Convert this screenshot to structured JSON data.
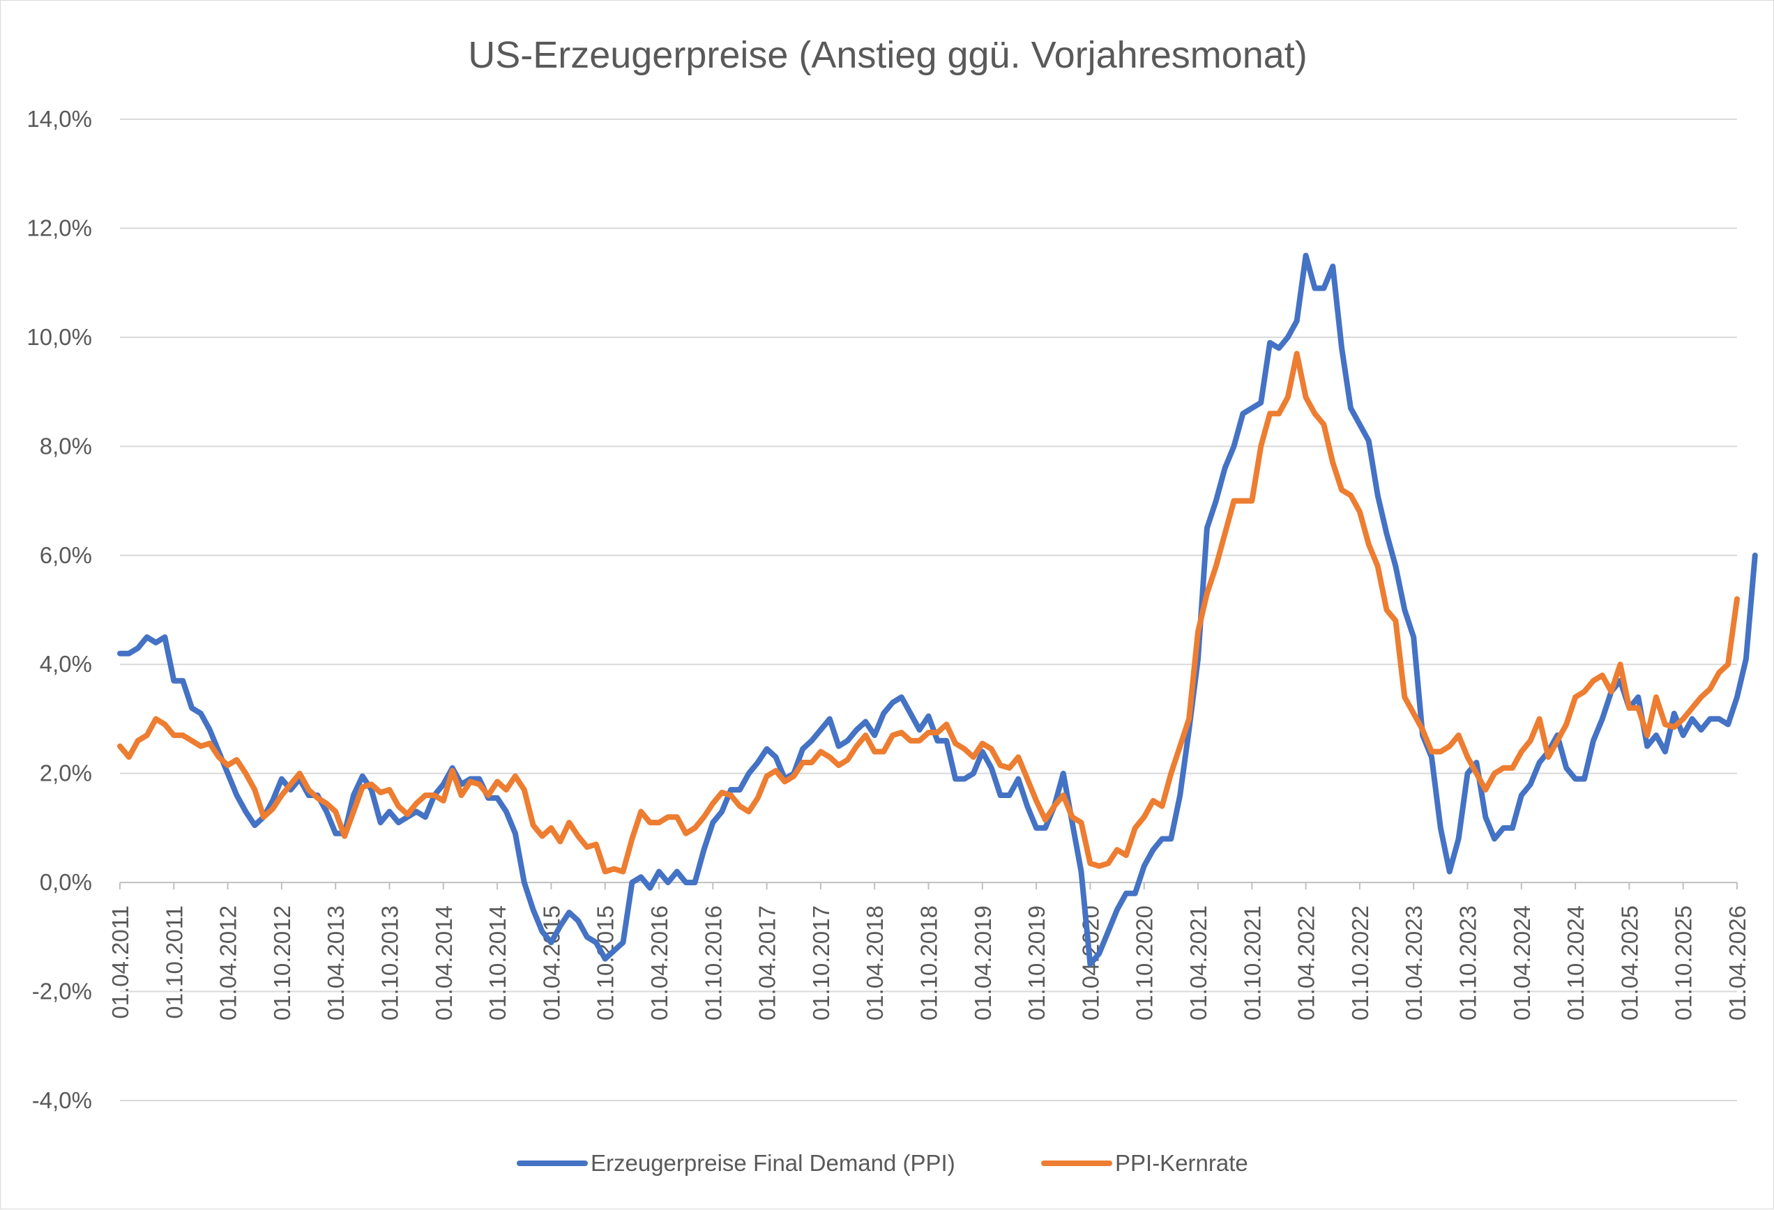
{
  "chart_data": {
    "type": "line",
    "title": "US-Erzeugerpreise (Anstieg ggü. Vorjahresmonat)",
    "xlabel": "",
    "ylabel": "",
    "ylim": [
      -4.0,
      14.0
    ],
    "y_ticks": [
      -4.0,
      -2.0,
      0.0,
      2.0,
      4.0,
      6.0,
      8.0,
      10.0,
      12.0,
      14.0
    ],
    "y_tick_labels": [
      "-4,0%",
      "-2,0%",
      "0,0%",
      "2,0%",
      "4,0%",
      "6,0%",
      "8,0%",
      "10,0%",
      "12,0%",
      "14,0%"
    ],
    "x_start": "2011-04",
    "x_end": "2026-04",
    "x_tick_labels": [
      "01.04.2011",
      "01.10.2011",
      "01.04.2012",
      "01.10.2012",
      "01.04.2013",
      "01.10.2013",
      "01.04.2014",
      "01.10.2014",
      "01.04.2015",
      "01.10.2015",
      "01.04.2016",
      "01.10.2016",
      "01.04.2017",
      "01.10.2017",
      "01.04.2018",
      "01.10.2018",
      "01.04.2019",
      "01.10.2019",
      "01.04.2020",
      "01.10.2020",
      "01.04.2021",
      "01.10.2021",
      "01.04.2022",
      "01.10.2022",
      "01.04.2023",
      "01.10.2023",
      "01.04.2024",
      "01.10.2024",
      "01.04.2025",
      "01.10.2025",
      "01.04.2026"
    ],
    "grid": true,
    "legend_position": "bottom",
    "series": [
      {
        "name": "Erzeugerpreise Final Demand (PPI)",
        "color": "#4472c4",
        "values": [
          4.2,
          4.2,
          4.3,
          4.5,
          4.4,
          4.5,
          3.7,
          3.7,
          3.2,
          3.1,
          2.8,
          2.4,
          2.0,
          1.6,
          1.3,
          1.05,
          1.2,
          1.5,
          1.9,
          1.7,
          1.9,
          1.6,
          1.6,
          1.3,
          0.9,
          0.9,
          1.6,
          1.95,
          1.7,
          1.1,
          1.3,
          1.1,
          1.2,
          1.3,
          1.2,
          1.6,
          1.8,
          2.1,
          1.8,
          1.9,
          1.9,
          1.55,
          1.55,
          1.3,
          0.9,
          0.0,
          -0.5,
          -0.9,
          -1.1,
          -0.8,
          -0.55,
          -0.7,
          -1.0,
          -1.1,
          -1.4,
          -1.25,
          -1.1,
          0.0,
          0.1,
          -0.1,
          0.2,
          0.0,
          0.2,
          0.0,
          0.0,
          0.6,
          1.1,
          1.3,
          1.7,
          1.7,
          2.0,
          2.2,
          2.45,
          2.3,
          1.9,
          2.0,
          2.45,
          2.6,
          2.8,
          3.0,
          2.5,
          2.6,
          2.8,
          2.95,
          2.7,
          3.1,
          3.3,
          3.4,
          3.1,
          2.8,
          3.05,
          2.6,
          2.6,
          1.9,
          1.9,
          2.0,
          2.4,
          2.1,
          1.6,
          1.6,
          1.9,
          1.4,
          1.0,
          1.0,
          1.4,
          2.0,
          1.1,
          0.2,
          -1.5,
          -1.3,
          -0.9,
          -0.5,
          -0.2,
          -0.2,
          0.3,
          0.6,
          0.8,
          0.8,
          1.6,
          2.8,
          4.1,
          6.5,
          7.0,
          7.6,
          8.0,
          8.6,
          8.7,
          8.8,
          9.9,
          9.8,
          10.0,
          10.3,
          11.5,
          10.9,
          10.9,
          11.3,
          9.8,
          8.7,
          8.4,
          8.1,
          7.1,
          6.4,
          5.8,
          5.0,
          4.5,
          2.7,
          2.3,
          1.0,
          0.2,
          0.8,
          2.0,
          2.2,
          1.2,
          0.8,
          1.0,
          1.0,
          1.6,
          1.8,
          2.2,
          2.4,
          2.7,
          2.1,
          1.9,
          1.9,
          2.6,
          3.0,
          3.5,
          3.7,
          3.2,
          3.4,
          2.5,
          2.7,
          2.4,
          3.1,
          2.7,
          3.0,
          2.8,
          3.0,
          3.0,
          2.9,
          3.4,
          4.1,
          6.0
        ]
      },
      {
        "name": "PPI-Kernrate",
        "color": "#ed7d31",
        "values": [
          2.5,
          2.3,
          2.6,
          2.7,
          3.0,
          2.9,
          2.7,
          2.7,
          2.6,
          2.5,
          2.55,
          2.3,
          2.15,
          2.25,
          2.0,
          1.7,
          1.2,
          1.35,
          1.6,
          1.8,
          2.0,
          1.7,
          1.55,
          1.45,
          1.3,
          0.85,
          1.3,
          1.75,
          1.8,
          1.65,
          1.7,
          1.4,
          1.25,
          1.45,
          1.6,
          1.6,
          1.5,
          2.05,
          1.6,
          1.85,
          1.8,
          1.6,
          1.85,
          1.7,
          1.95,
          1.7,
          1.05,
          0.85,
          1.0,
          0.75,
          1.1,
          0.85,
          0.65,
          0.7,
          0.2,
          0.25,
          0.2,
          0.8,
          1.3,
          1.1,
          1.1,
          1.2,
          1.2,
          0.9,
          1.0,
          1.2,
          1.45,
          1.65,
          1.6,
          1.4,
          1.3,
          1.55,
          1.95,
          2.05,
          1.85,
          1.95,
          2.2,
          2.2,
          2.4,
          2.3,
          2.15,
          2.25,
          2.5,
          2.7,
          2.4,
          2.4,
          2.7,
          2.75,
          2.6,
          2.6,
          2.75,
          2.75,
          2.9,
          2.55,
          2.45,
          2.3,
          2.55,
          2.45,
          2.15,
          2.1,
          2.3,
          1.9,
          1.5,
          1.15,
          1.4,
          1.6,
          1.2,
          1.1,
          0.35,
          0.3,
          0.35,
          0.6,
          0.5,
          1.0,
          1.2,
          1.5,
          1.4,
          2.0,
          2.5,
          3.0,
          4.6,
          5.3,
          5.8,
          6.4,
          7.0,
          7.0,
          7.0,
          8.0,
          8.6,
          8.6,
          8.9,
          9.7,
          8.9,
          8.6,
          8.4,
          7.7,
          7.2,
          7.1,
          6.8,
          6.2,
          5.8,
          5.0,
          4.8,
          3.4,
          3.1,
          2.8,
          2.4,
          2.4,
          2.5,
          2.7,
          2.3,
          2.0,
          1.7,
          2.0,
          2.1,
          2.1,
          2.4,
          2.6,
          3.0,
          2.3,
          2.6,
          2.9,
          3.4,
          3.5,
          3.7,
          3.8,
          3.5,
          4.0,
          3.2,
          3.2,
          2.7,
          3.4,
          2.9,
          2.85,
          3.0,
          3.2,
          3.4,
          3.55,
          3.85,
          4.0,
          5.2
        ]
      }
    ]
  }
}
